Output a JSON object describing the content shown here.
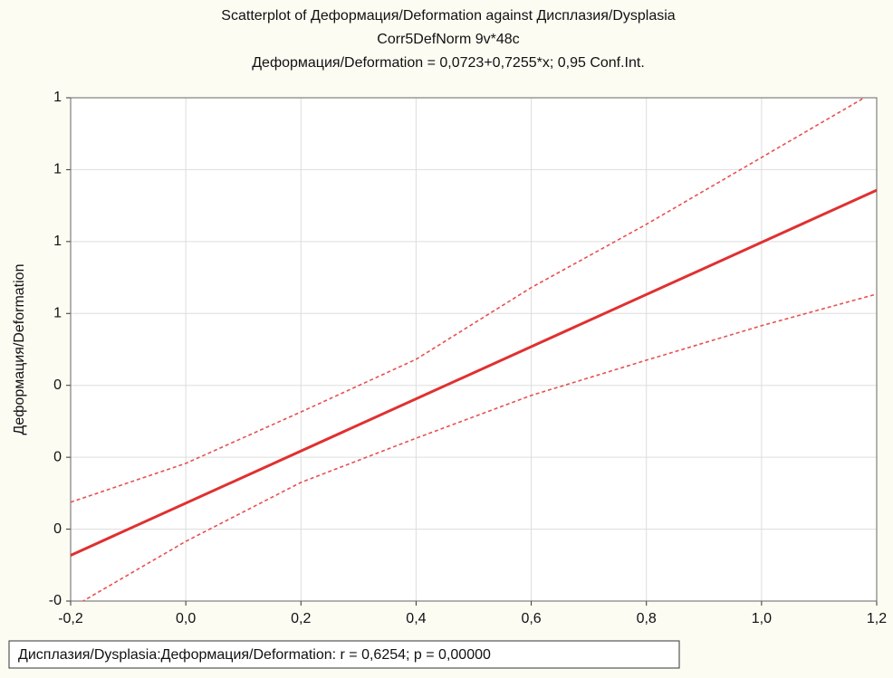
{
  "chart_data": {
    "type": "line",
    "title": "Scatterplot of Деформация/Deformation against Дисплазия/Dysplasia",
    "subtitle": "Corr5DefNorm 9v*48c",
    "equation": "Деформация/Deformation = 0,0723+0,7255*x; 0,95 Conf.Int.",
    "ylabel": "Деформация/Deformation",
    "note": "Дисплазия/Dysplasia:Деформация/Deformation:   r = 0,6254; p = 0,00000",
    "xlim": [
      -0.2,
      1.2
    ],
    "ylim": [
      -0.2,
      1.2
    ],
    "xticks": [
      {
        "value": -0.2,
        "label": "-0,2"
      },
      {
        "value": 0.0,
        "label": "0,0"
      },
      {
        "value": 0.2,
        "label": "0,2"
      },
      {
        "value": 0.4,
        "label": "0,4"
      },
      {
        "value": 0.6,
        "label": "0,6"
      },
      {
        "value": 0.8,
        "label": "0,8"
      },
      {
        "value": 1.0,
        "label": "1,0"
      },
      {
        "value": 1.2,
        "label": "1,2"
      }
    ],
    "yticks": [
      {
        "value": -0.2,
        "label": "-0"
      },
      {
        "value": 0.0,
        "label": "0"
      },
      {
        "value": 0.2,
        "label": "0"
      },
      {
        "value": 0.4,
        "label": "0"
      },
      {
        "value": 0.6,
        "label": "1"
      },
      {
        "value": 0.8,
        "label": "1"
      },
      {
        "value": 1.0,
        "label": "1"
      },
      {
        "value": 1.2,
        "label": "1"
      }
    ],
    "grid": true,
    "series": [
      {
        "color": "#e03030",
        "style": "solid",
        "x": [
          -0.2,
          1.2
        ],
        "values": [
          -0.0728,
          0.9429
        ]
      },
      {
        "color": "#e85050",
        "style": "dashed",
        "x": [
          -0.2,
          0.0,
          0.2,
          0.4,
          0.6,
          0.8,
          1.0,
          1.2
        ],
        "values": [
          0.075,
          0.183,
          0.326,
          0.4725,
          0.672,
          0.848,
          1.034,
          1.22
        ]
      },
      {
        "color": "#e85050",
        "style": "dashed",
        "x": [
          -0.2,
          0.0,
          0.2,
          0.4,
          0.6,
          0.8,
          1.0,
          1.2
        ],
        "values": [
          -0.22,
          -0.034,
          0.13,
          0.253,
          0.372,
          0.47,
          0.566,
          0.654
        ]
      }
    ]
  }
}
